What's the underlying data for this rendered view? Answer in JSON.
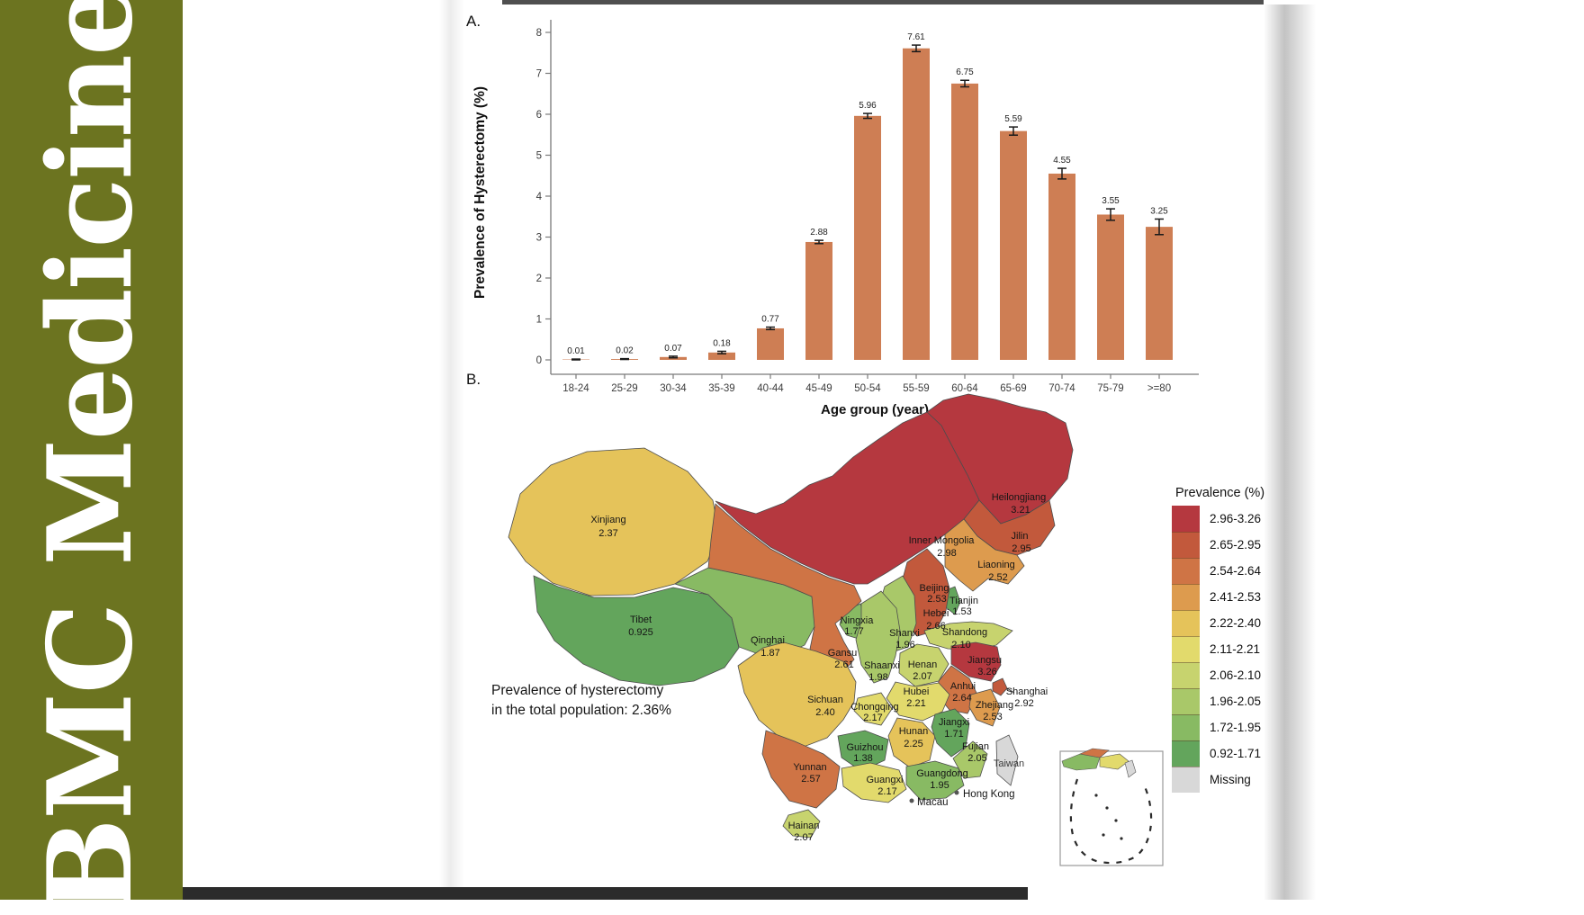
{
  "banner": {
    "journal_title": "BMC Medicine",
    "background_color": "#6c7420",
    "text_color": "#ffffff"
  },
  "figure": {
    "panel_a_label": "A.",
    "panel_b_label": "B."
  },
  "chart_data": [
    {
      "type": "bar",
      "panel": "A.",
      "title": "",
      "xlabel": "Age group (year)",
      "ylabel": "Prevalence of Hysterectomy (%)",
      "ylim": [
        0,
        8
      ],
      "yticks": [
        0,
        1,
        2,
        3,
        4,
        5,
        6,
        7,
        8
      ],
      "grid": false,
      "bar_color": "#ce7e54",
      "error_bar_color": "#1a1a1a",
      "categories": [
        "18-24",
        "25-29",
        "30-34",
        "35-39",
        "40-44",
        "45-49",
        "50-54",
        "55-59",
        "60-64",
        "65-69",
        "70-74",
        "75-79",
        ">=80"
      ],
      "values": [
        0.01,
        0.02,
        0.07,
        0.18,
        0.77,
        2.88,
        5.96,
        7.61,
        6.75,
        5.59,
        4.55,
        3.55,
        3.25
      ],
      "value_labels": [
        "0.01",
        "0.02",
        "0.07",
        "0.18",
        "0.77",
        "2.88",
        "5.96",
        "7.61",
        "6.75",
        "5.59",
        "4.55",
        "3.55",
        "3.25"
      ],
      "errors": [
        0.01,
        0.01,
        0.02,
        0.03,
        0.03,
        0.04,
        0.06,
        0.08,
        0.08,
        0.1,
        0.13,
        0.14,
        0.19
      ]
    },
    {
      "type": "heatmap",
      "subtype": "china-choropleth",
      "panel": "B.",
      "legend_title": "Prevalence (%)",
      "legend_position": "right",
      "annotation_line1": "Prevalence of hysterectomy",
      "annotation_line2": "in the total population: 2.36%",
      "classes": [
        {
          "range": "2.96-3.26",
          "color": "#b5383f"
        },
        {
          "range": "2.65-2.95",
          "color": "#c2593c"
        },
        {
          "range": "2.54-2.64",
          "color": "#cf7445"
        },
        {
          "range": "2.41-2.53",
          "color": "#dd9b4e"
        },
        {
          "range": "2.22-2.40",
          "color": "#e5c35a"
        },
        {
          "range": "2.11-2.21",
          "color": "#e2da6c"
        },
        {
          "range": "2.06-2.10",
          "color": "#c7d36e"
        },
        {
          "range": "1.96-2.05",
          "color": "#a9c869"
        },
        {
          "range": "1.72-1.95",
          "color": "#88ba63"
        },
        {
          "range": "0.92-1.71",
          "color": "#63a55c"
        },
        {
          "range": "Missing",
          "color": "#d8d8d8"
        }
      ],
      "regions": [
        {
          "name": "Heilongjiang",
          "value": "3.21",
          "class": "2.96-3.26"
        },
        {
          "name": "Inner Mongolia",
          "value": "2.98",
          "class": "2.96-3.26"
        },
        {
          "name": "Jilin",
          "value": "2.95",
          "class": "2.65-2.95"
        },
        {
          "name": "Liaoning",
          "value": "2.52",
          "class": "2.41-2.53"
        },
        {
          "name": "Xinjiang",
          "value": "2.37",
          "class": "2.22-2.40"
        },
        {
          "name": "Beijing",
          "value": "2.53",
          "class": "2.41-2.53"
        },
        {
          "name": "Tianjin",
          "value": "1.53",
          "class": "0.92-1.71"
        },
        {
          "name": "Hebei",
          "value": "2.66",
          "class": "2.65-2.95"
        },
        {
          "name": "Shanxi",
          "value": "1.96",
          "class": "1.96-2.05"
        },
        {
          "name": "Shandong",
          "value": "2.10",
          "class": "2.06-2.10"
        },
        {
          "name": "Ningxia",
          "value": "1.77",
          "class": "1.72-1.95"
        },
        {
          "name": "Qinghai",
          "value": "1.87",
          "class": "1.72-1.95"
        },
        {
          "name": "Gansu",
          "value": "2.61",
          "class": "2.54-2.64"
        },
        {
          "name": "Shaanxi",
          "value": "1.98",
          "class": "1.96-2.05"
        },
        {
          "name": "Henan",
          "value": "2.07",
          "class": "2.06-2.10"
        },
        {
          "name": "Jiangsu",
          "value": "3.26",
          "class": "2.96-3.26"
        },
        {
          "name": "Shanghai",
          "value": "2.92",
          "class": "2.65-2.95"
        },
        {
          "name": "Anhui",
          "value": "2.64",
          "class": "2.54-2.64"
        },
        {
          "name": "Zhejiang",
          "value": "2.53",
          "class": "2.41-2.53"
        },
        {
          "name": "Hubei",
          "value": "2.21",
          "class": "2.11-2.21"
        },
        {
          "name": "Chongqing",
          "value": "2.17",
          "class": "2.11-2.21"
        },
        {
          "name": "Sichuan",
          "value": "2.40",
          "class": "2.22-2.40"
        },
        {
          "name": "Tibet",
          "value": "0.925",
          "class": "0.92-1.71"
        },
        {
          "name": "Hunan",
          "value": "2.25",
          "class": "2.22-2.40"
        },
        {
          "name": "Jiangxi",
          "value": "1.71",
          "class": "0.92-1.71"
        },
        {
          "name": "Guizhou",
          "value": "1.38",
          "class": "0.92-1.71"
        },
        {
          "name": "Fujian",
          "value": "2.05",
          "class": "1.96-2.05"
        },
        {
          "name": "Yunnan",
          "value": "2.57",
          "class": "2.54-2.64"
        },
        {
          "name": "Guangxi",
          "value": "2.17",
          "class": "2.11-2.21"
        },
        {
          "name": "Guangdong",
          "value": "1.95",
          "class": "1.72-1.95"
        },
        {
          "name": "Hainan",
          "value": "2.07",
          "class": "2.06-2.10"
        },
        {
          "name": "Taiwan",
          "value": "",
          "class": "Missing"
        }
      ],
      "city_labels": [
        "Hong Kong",
        "Macau"
      ]
    }
  ]
}
